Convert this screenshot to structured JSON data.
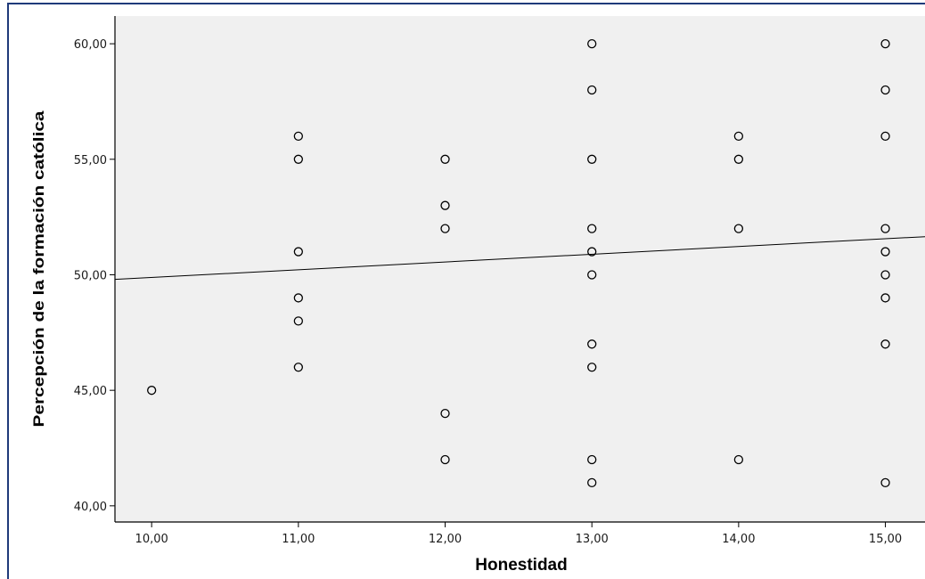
{
  "chart_data": {
    "type": "scatter",
    "xlabel": "Honestidad",
    "ylabel": "Percepción de la formación católica",
    "xlim": [
      9.75,
      15.27
    ],
    "ylim": [
      39.3,
      61.2
    ],
    "xticks": [
      10,
      11,
      12,
      13,
      14,
      15
    ],
    "xtick_labels": [
      "10,00",
      "11,00",
      "12,00",
      "13,00",
      "14,00",
      "15,00"
    ],
    "yticks": [
      40,
      45,
      50,
      55,
      60
    ],
    "ytick_labels": [
      "40,00",
      "45,00",
      "50,00",
      "55,00",
      "60,00"
    ],
    "grid": false,
    "background": "#f0f0f0",
    "marker": "hollow-circle",
    "points": [
      [
        10,
        45
      ],
      [
        11,
        56
      ],
      [
        11,
        55
      ],
      [
        11,
        51
      ],
      [
        11,
        49
      ],
      [
        11,
        48
      ],
      [
        11,
        46
      ],
      [
        12,
        55
      ],
      [
        12,
        53
      ],
      [
        12,
        52
      ],
      [
        12,
        44
      ],
      [
        12,
        42
      ],
      [
        13,
        60
      ],
      [
        13,
        58
      ],
      [
        13,
        55
      ],
      [
        13,
        52
      ],
      [
        13,
        51
      ],
      [
        13,
        50
      ],
      [
        13,
        47
      ],
      [
        13,
        46
      ],
      [
        13,
        42
      ],
      [
        13,
        41
      ],
      [
        14,
        56
      ],
      [
        14,
        55
      ],
      [
        14,
        52
      ],
      [
        14,
        42
      ],
      [
        15,
        60
      ],
      [
        15,
        58
      ],
      [
        15,
        56
      ],
      [
        15,
        52
      ],
      [
        15,
        51
      ],
      [
        15,
        50
      ],
      [
        15,
        49
      ],
      [
        15,
        47
      ],
      [
        15,
        41
      ]
    ],
    "fit_line": {
      "x": [
        9.75,
        15.27
      ],
      "y": [
        49.8,
        51.65
      ]
    }
  }
}
